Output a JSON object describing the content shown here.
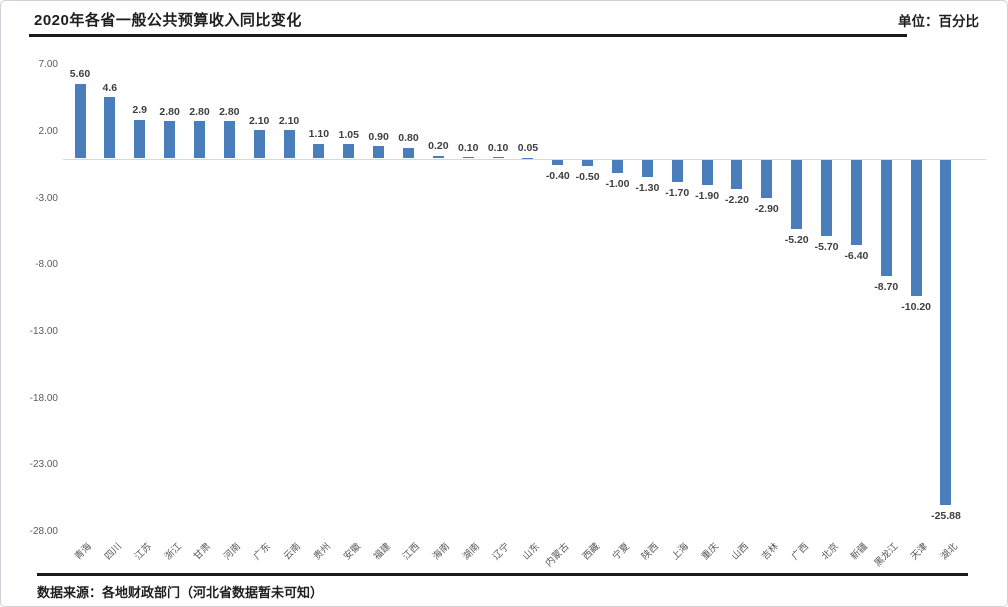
{
  "header": {
    "title": "2020年各省一般公共预算收入同比变化",
    "unit_label": "单位：百分比"
  },
  "footer": {
    "source": "数据来源：各地财政部门（河北省数据暂未可知）"
  },
  "colors": {
    "bar": "#4a7ebb",
    "axis_text": "#595959",
    "category_text": "#595959",
    "value_label_text": "#3f3f3f",
    "rule": "#1a1a1a",
    "baseline": "#d9d9d9"
  },
  "chart_data": {
    "type": "bar",
    "title": "2020年各省一般公共预算收入同比变化",
    "unit": "百分比",
    "categories": [
      "青海",
      "四川",
      "江苏",
      "浙江",
      "甘肃",
      "河南",
      "广东",
      "云南",
      "贵州",
      "安徽",
      "福建",
      "江西",
      "海南",
      "湖南",
      "辽宁",
      "山东",
      "内蒙古",
      "西藏",
      "宁夏",
      "陕西",
      "上海",
      "重庆",
      "山西",
      "吉林",
      "广西",
      "北京",
      "新疆",
      "黑龙江",
      "天津",
      "湖北"
    ],
    "values": [
      5.6,
      4.6,
      2.9,
      2.8,
      2.8,
      2.8,
      2.1,
      2.1,
      1.1,
      1.05,
      0.9,
      0.8,
      0.2,
      0.1,
      0.1,
      0.05,
      -0.4,
      -0.5,
      -1.0,
      -1.3,
      -1.7,
      -1.9,
      -2.2,
      -2.9,
      -5.2,
      -5.7,
      -6.4,
      -8.7,
      -10.2,
      -25.88
    ],
    "value_labels": [
      "5.60",
      "4.6",
      "2.9",
      "2.80",
      "2.80",
      "2.80",
      "2.10",
      "2.10",
      "1.10",
      "1.05",
      "0.90",
      "0.80",
      "0.20",
      "0.10",
      "0.10",
      "0.05",
      "-0.40",
      "-0.50",
      "-1.00",
      "-1.30",
      "-1.70",
      "-1.90",
      "-2.20",
      "-2.90",
      "-5.20",
      "-5.70",
      "-6.40",
      "-8.70",
      "-10.20",
      "-25.88"
    ],
    "y_ticks": [
      "7.00",
      "2.00",
      "-3.00",
      "-8.00",
      "-13.00",
      "-18.00",
      "-23.00",
      "-28.00"
    ],
    "y_tick_values": [
      7,
      2,
      -3,
      -8,
      -13,
      -18,
      -23,
      -28
    ],
    "ylim": [
      -28,
      7
    ],
    "grid": false,
    "legend": false,
    "xlabel": "",
    "ylabel": ""
  }
}
